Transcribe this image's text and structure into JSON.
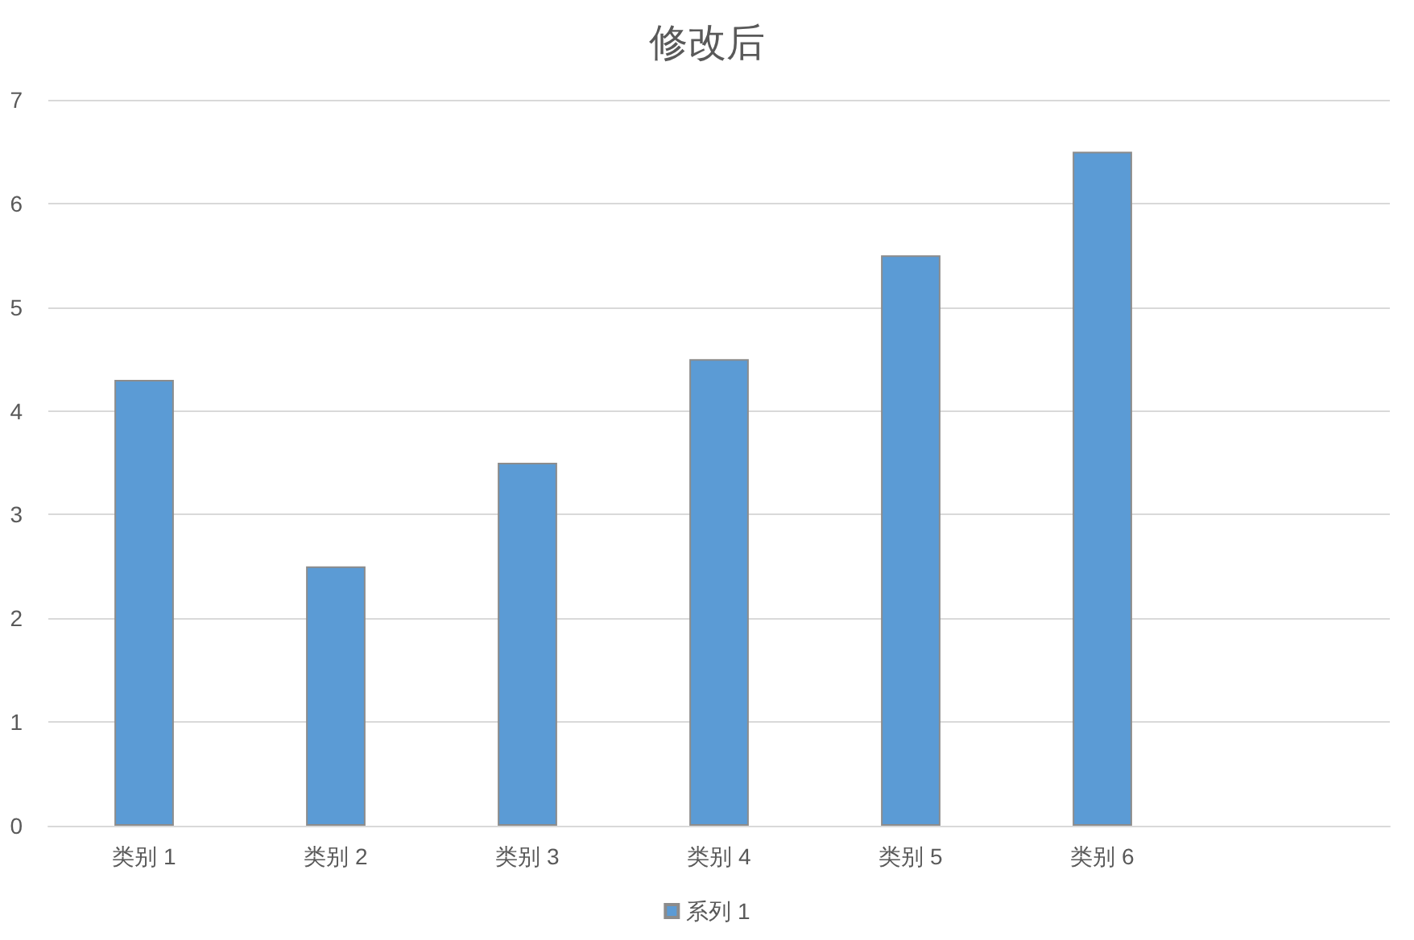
{
  "chart_data": {
    "type": "bar",
    "title": "修改后",
    "categories": [
      "类别 1",
      "类别 2",
      "类别 3",
      "类别 4",
      "类别 5",
      "类别 6",
      null
    ],
    "series": [
      {
        "name": "系列 1",
        "color": "#5b9bd5",
        "values": [
          4.3,
          2.5,
          3.5,
          4.5,
          5.5,
          6.5,
          null
        ]
      }
    ],
    "ylim": [
      0,
      7
    ],
    "yticks": [
      0,
      1,
      2,
      3,
      4,
      5,
      6,
      7
    ],
    "grid": "y",
    "legend": "bottom"
  }
}
